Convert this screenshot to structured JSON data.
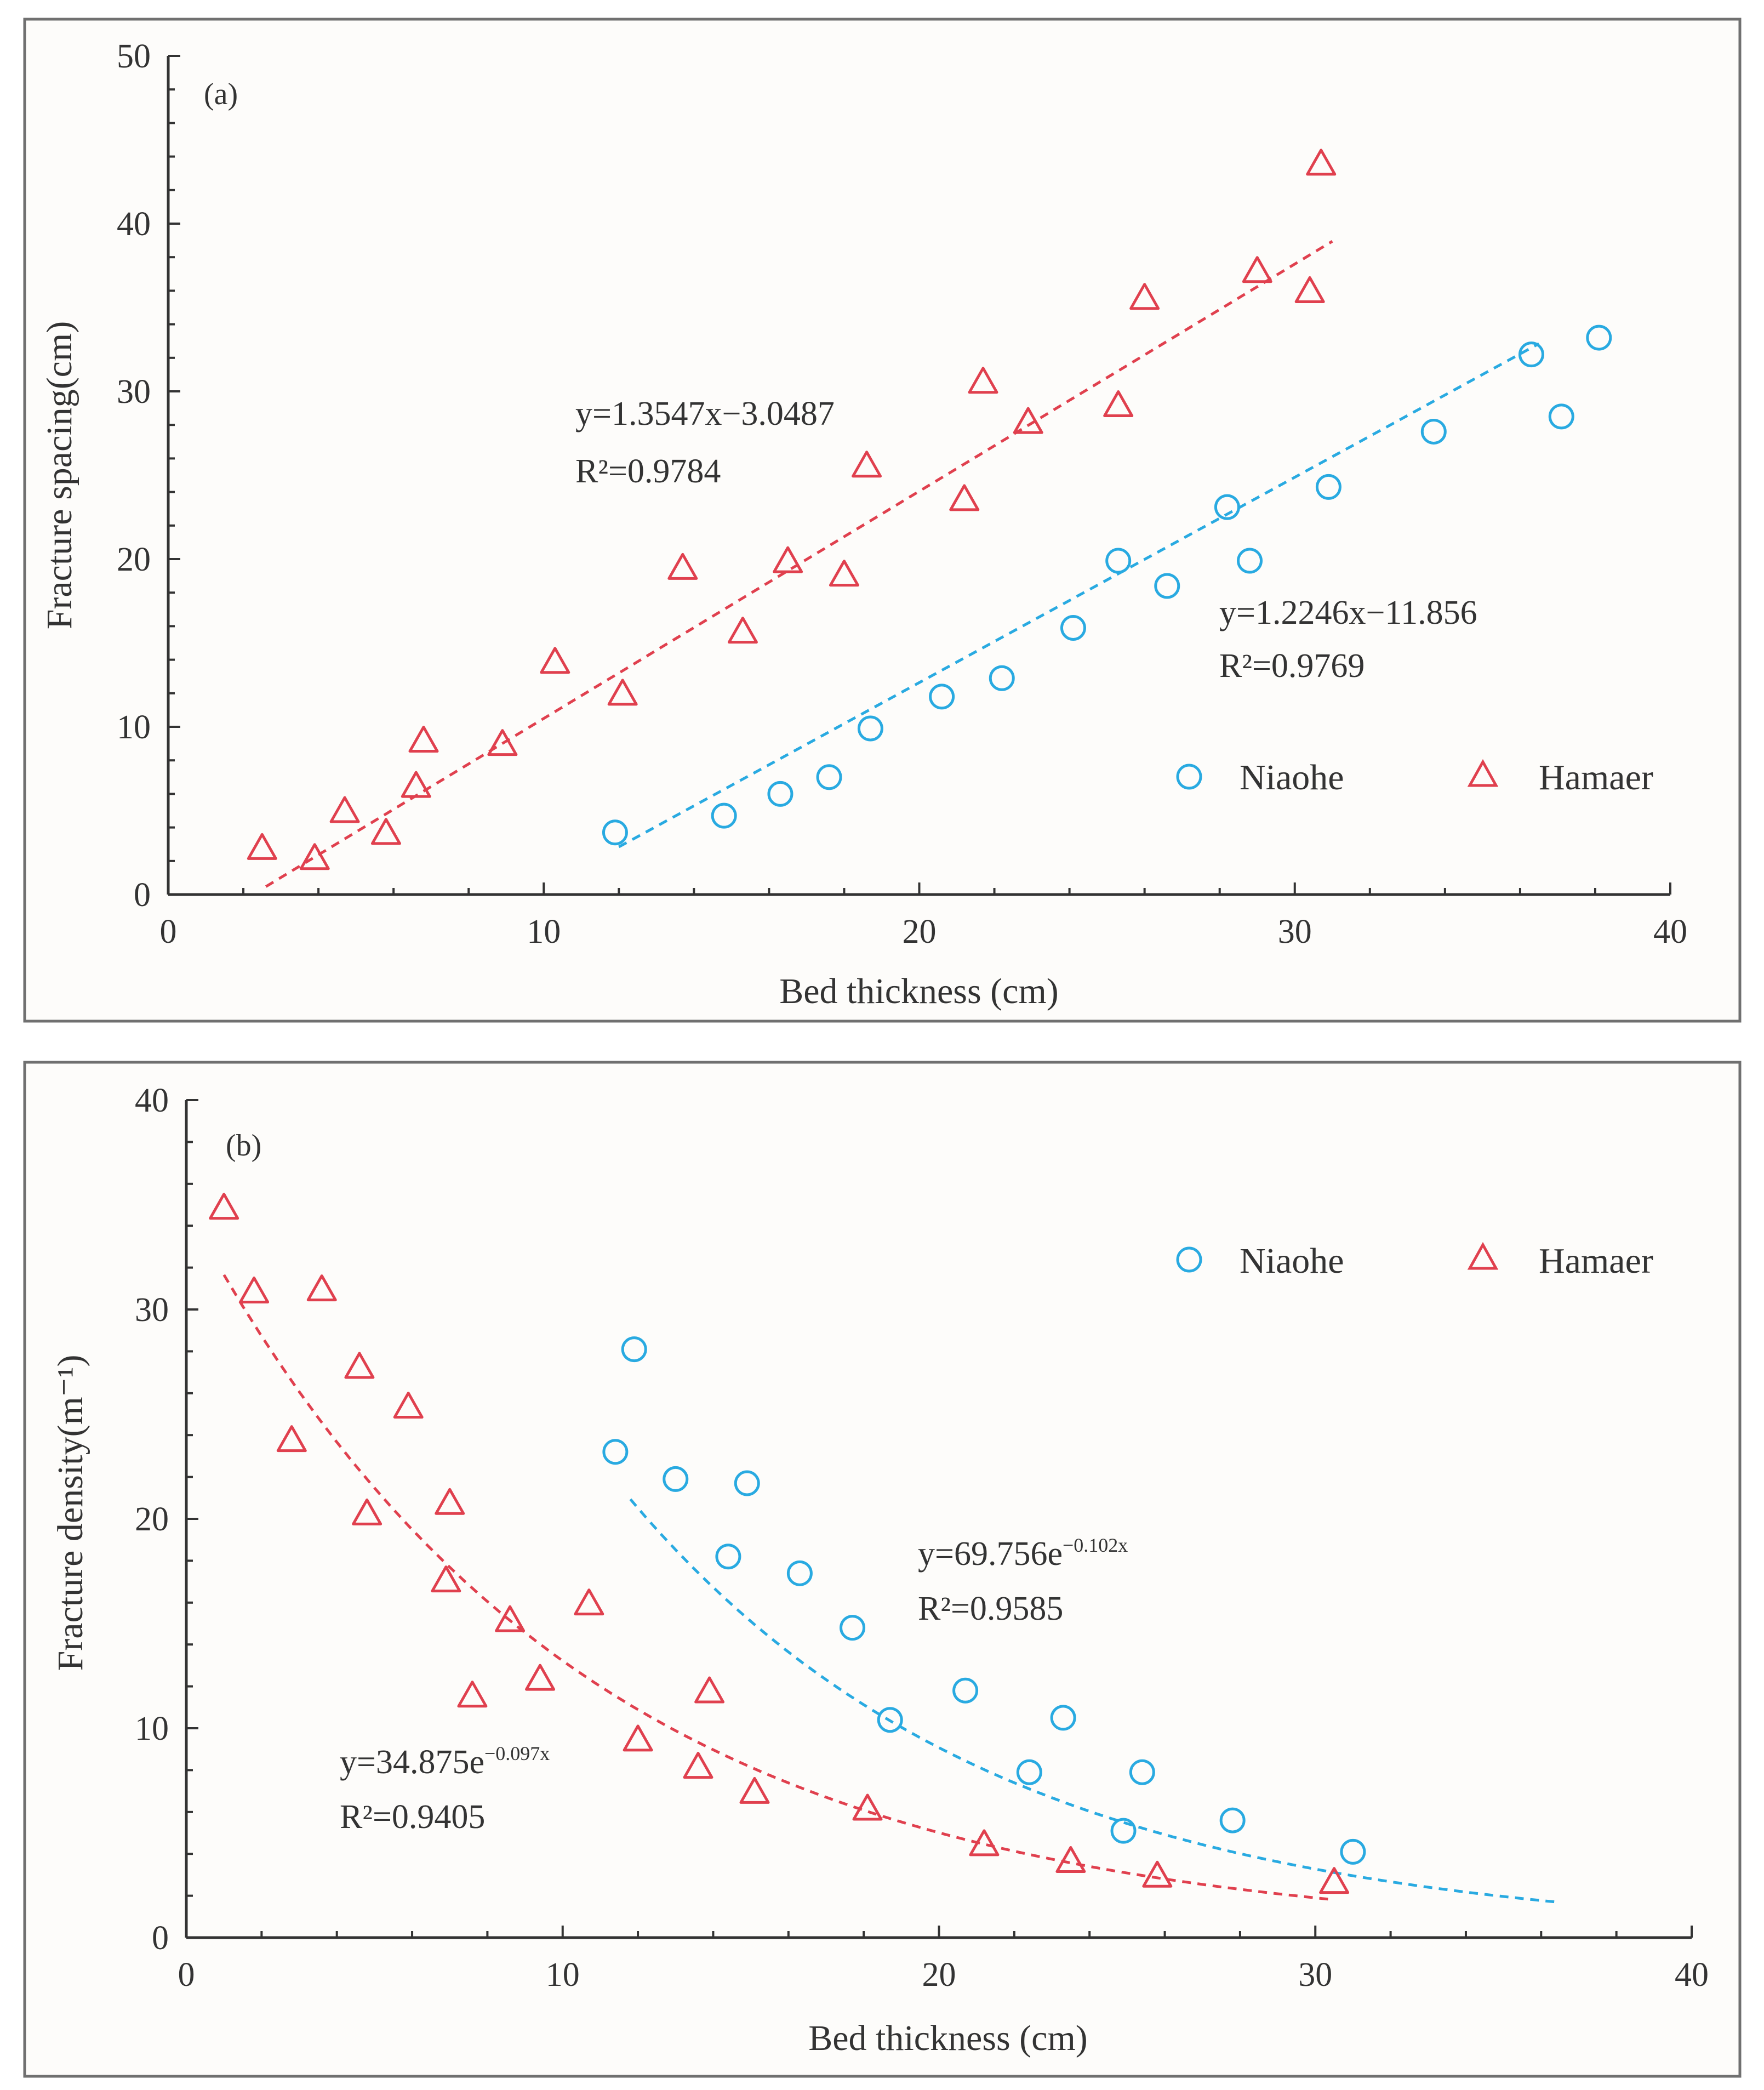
{
  "chart_data": [
    {
      "type": "scatter",
      "panel_label": "(a)",
      "xlabel": "Bed thickness (cm)",
      "ylabel": "Fracture spacing(cm)",
      "xlim": [
        0,
        40
      ],
      "ylim": [
        0,
        50
      ],
      "xticks": [
        "0",
        "10",
        "20",
        "30",
        "40"
      ],
      "yticks": [
        "0",
        "10",
        "20",
        "30",
        "40",
        "50"
      ],
      "legend_position": "bottom-right",
      "series": [
        {
          "name": "Niaohe",
          "marker": "circle",
          "color": "#29aae1",
          "x": [
            11.9,
            14.8,
            16.3,
            17.6,
            18.7,
            20.6,
            22.2,
            24.1,
            25.3,
            26.6,
            28.2,
            28.8,
            30.9,
            33.7,
            36.3,
            37.1,
            38.1
          ],
          "y": [
            3.7,
            4.7,
            6.0,
            7.0,
            9.9,
            11.8,
            12.9,
            15.9,
            19.9,
            18.4,
            23.1,
            19.9,
            24.3,
            27.6,
            32.2,
            28.5,
            33.2
          ],
          "fit": {
            "kind": "linear",
            "slope": 1.2246,
            "intercept": -11.856,
            "x_range": [
              12,
              36.5
            ]
          },
          "equation": "y=1.2246x−11.856",
          "r2": "R²=0.9769"
        },
        {
          "name": "Hamaer",
          "marker": "triangle",
          "color": "#e0404e",
          "x": [
            2.5,
            3.9,
            4.7,
            5.8,
            6.6,
            6.8,
            8.9,
            10.3,
            12.1,
            13.7,
            15.3,
            16.5,
            18.0,
            18.6,
            21.2,
            21.7,
            22.9,
            25.3,
            26.0,
            29.0,
            30.4,
            30.7
          ],
          "y": [
            2.7,
            2.1,
            4.9,
            3.6,
            6.4,
            9.1,
            8.9,
            13.8,
            11.9,
            19.4,
            15.6,
            19.8,
            19.0,
            25.5,
            23.5,
            30.5,
            28.1,
            29.1,
            35.5,
            37.1,
            35.9,
            43.5
          ],
          "fit": {
            "kind": "linear",
            "slope": 1.3547,
            "intercept": -3.0487,
            "x_range": [
              2.6,
              31
            ]
          },
          "equation": "y=1.3547x−3.0487",
          "r2": "R²=0.9784"
        }
      ]
    },
    {
      "type": "scatter",
      "panel_label": "(b)",
      "xlabel": "Bed thickness (cm)",
      "ylabel": "Fracture density(m⁻¹)",
      "xlim": [
        0,
        40
      ],
      "ylim": [
        0,
        40
      ],
      "xticks": [
        "0",
        "10",
        "20",
        "30",
        "40"
      ],
      "yticks": [
        "0",
        "10",
        "20",
        "30",
        "40"
      ],
      "legend_position": "top-right",
      "series": [
        {
          "name": "Niaohe",
          "marker": "circle",
          "color": "#29aae1",
          "x": [
            11.4,
            11.9,
            13.0,
            14.4,
            14.9,
            16.3,
            17.7,
            18.7,
            20.7,
            22.4,
            23.3,
            24.9,
            25.4,
            27.8,
            31.0
          ],
          "y": [
            23.2,
            28.1,
            21.9,
            18.2,
            21.7,
            17.4,
            14.8,
            10.4,
            11.8,
            7.9,
            10.5,
            5.1,
            7.9,
            5.6,
            4.1
          ],
          "fit": {
            "kind": "exponential",
            "a": 69.756,
            "b": -0.102,
            "x_range": [
              11.8,
              36.5
            ]
          },
          "equation_main": "y=69.756e",
          "equation_exp": "−0.102x",
          "r2": "R²=0.9585"
        },
        {
          "name": "Hamaer",
          "marker": "triangle",
          "color": "#e0404e",
          "x": [
            1.0,
            1.8,
            2.8,
            3.6,
            4.6,
            4.8,
            5.9,
            6.9,
            7.0,
            7.6,
            8.6,
            9.4,
            10.7,
            12.0,
            13.6,
            13.9,
            15.1,
            18.1,
            21.2,
            23.5,
            25.8,
            30.5
          ],
          "y": [
            34.8,
            30.8,
            23.7,
            30.9,
            27.2,
            20.2,
            25.3,
            17.0,
            20.7,
            11.5,
            15.1,
            12.3,
            15.9,
            9.4,
            8.1,
            11.7,
            6.9,
            6.1,
            4.4,
            3.6,
            2.9,
            2.6
          ],
          "fit": {
            "kind": "exponential",
            "a": 34.875,
            "b": -0.097,
            "x_range": [
              1,
              30.5
            ]
          },
          "equation_main": "y=34.875e",
          "equation_exp": "−0.097x",
          "r2": "R²=0.9405"
        }
      ]
    }
  ]
}
